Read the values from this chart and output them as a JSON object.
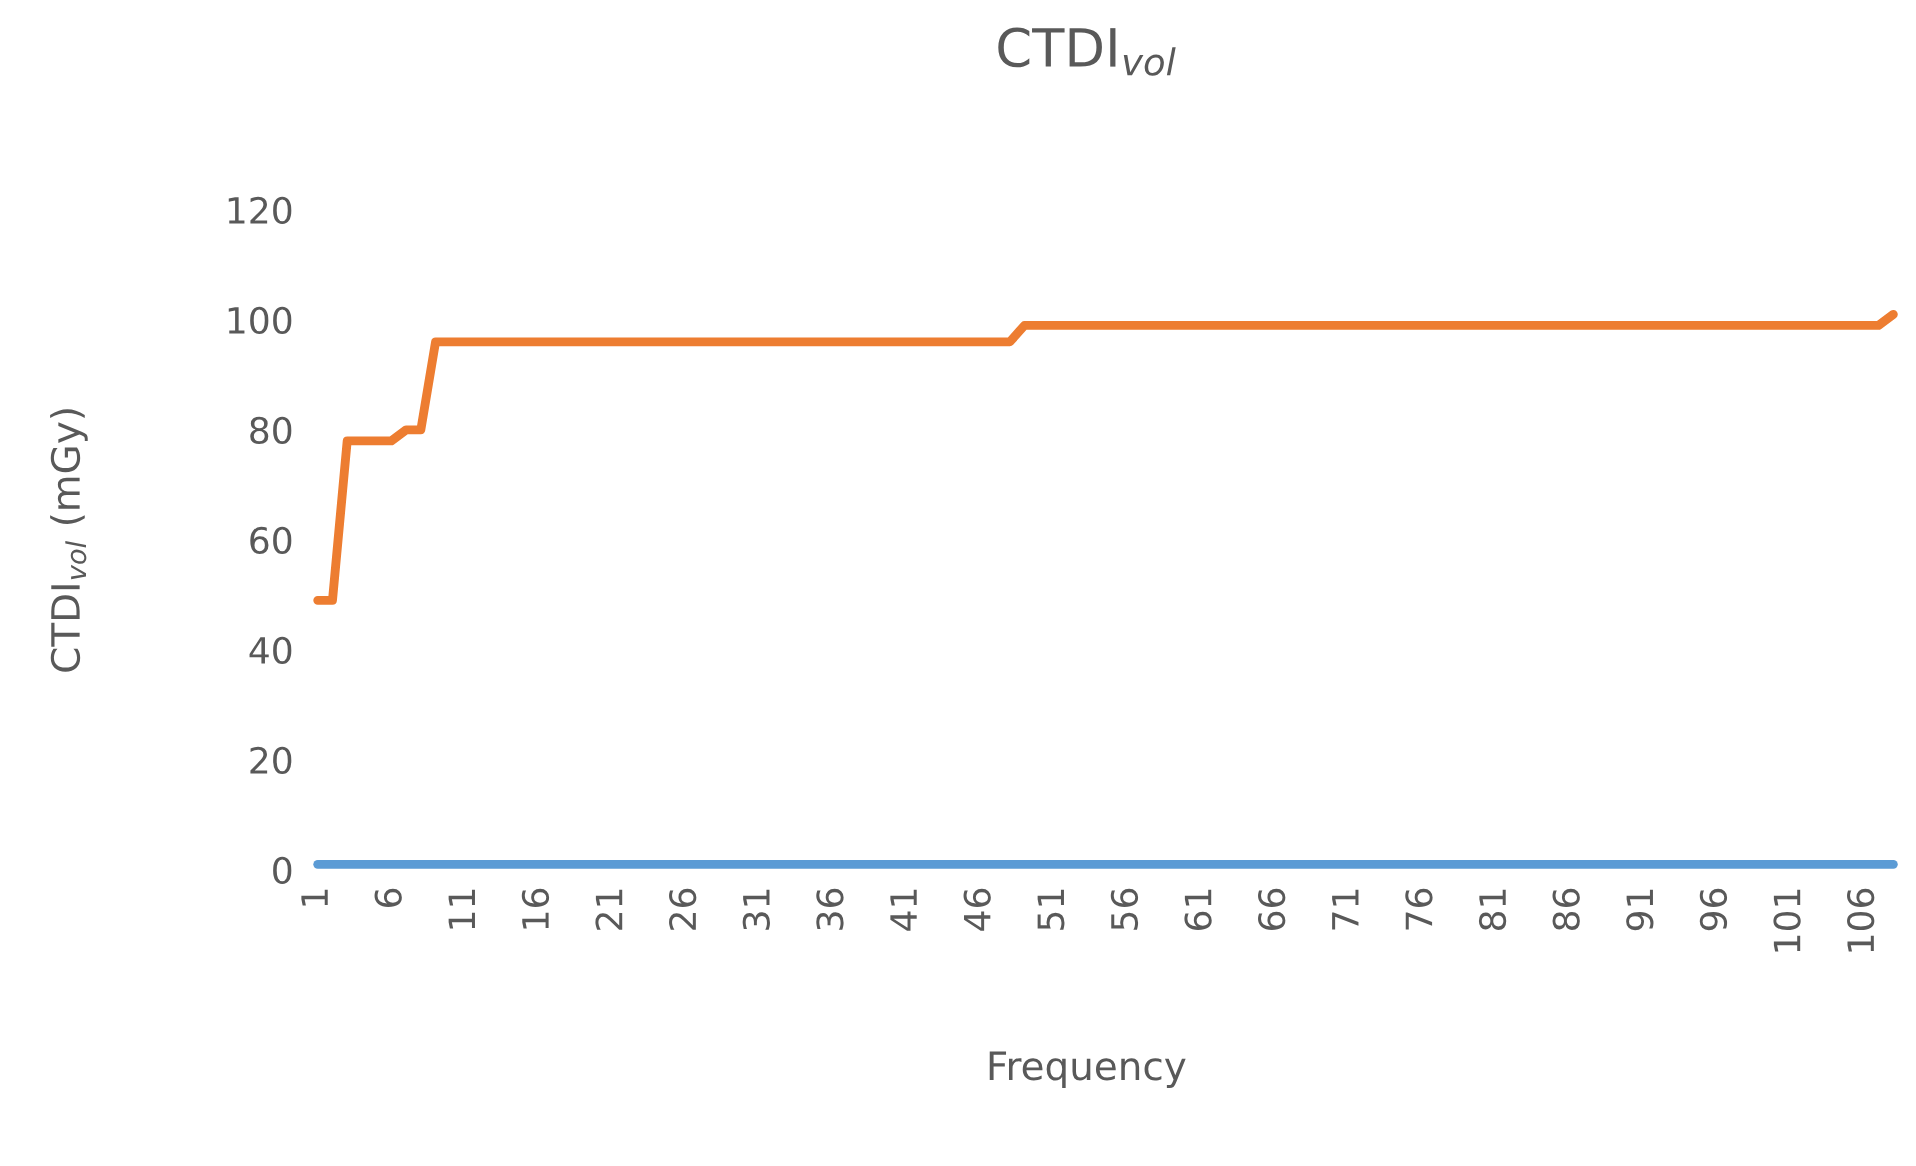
{
  "chart_data": {
    "type": "line",
    "title": "CTDI$_{vol}$",
    "xlabel": "Frequency",
    "ylabel": "CTDI$_{vol}$ (mGy)",
    "categories": [
      "1",
      null,
      null,
      null,
      null,
      "6",
      null,
      null,
      null,
      null,
      "11",
      null,
      null,
      null,
      null,
      "16",
      null,
      null,
      null,
      null,
      "21",
      null,
      null,
      null,
      null,
      "26",
      null,
      null,
      null,
      null,
      "31",
      null,
      null,
      null,
      null,
      "36",
      null,
      null,
      null,
      null,
      "41",
      null,
      null,
      null,
      null,
      "46",
      null,
      null,
      null,
      null,
      "51",
      null,
      null,
      null,
      null,
      "56",
      null,
      null,
      null,
      null,
      "61",
      null,
      null,
      null,
      null,
      "66",
      null,
      null,
      null,
      null,
      "71",
      null,
      null,
      null,
      null,
      "76",
      null,
      null,
      null,
      null,
      "81",
      null,
      null,
      null,
      null,
      "86",
      null,
      null,
      null,
      null,
      "91",
      null,
      null,
      null,
      null,
      "96",
      null,
      null,
      null,
      null,
      "101",
      null,
      null,
      null,
      null,
      "106",
      null,
      null
    ],
    "series": [
      {
        "color": "#5b9bd5",
        "values": [
          1,
          1,
          1,
          1,
          1,
          1,
          1,
          1,
          1,
          1,
          1,
          1,
          1,
          1,
          1,
          1,
          1,
          1,
          1,
          1,
          1,
          1,
          1,
          1,
          1,
          1,
          1,
          1,
          1,
          1,
          1,
          1,
          1,
          1,
          1,
          1,
          1,
          1,
          1,
          1,
          1,
          1,
          1,
          1,
          1,
          1,
          1,
          1,
          1,
          1,
          1,
          1,
          1,
          1,
          1,
          1,
          1,
          1,
          1,
          1,
          1,
          1,
          1,
          1,
          1,
          1,
          1,
          1,
          1,
          1,
          1,
          1,
          1,
          1,
          1,
          1,
          1,
          1,
          1,
          1,
          1,
          1,
          1,
          1,
          1,
          1,
          1,
          1,
          1,
          1,
          1,
          1,
          1,
          1,
          1,
          1,
          1,
          1,
          1,
          1,
          1,
          1,
          1,
          1,
          1,
          1,
          1,
          1
        ]
      },
      {
        "color": "#ed7d31",
        "values": [
          49,
          49,
          78,
          78,
          78,
          78,
          80,
          80,
          96,
          96,
          96,
          96,
          96,
          96,
          96,
          96,
          96,
          96,
          96,
          96,
          96,
          96,
          96,
          96,
          96,
          96,
          96,
          96,
          96,
          96,
          96,
          96,
          96,
          96,
          96,
          96,
          96,
          96,
          96,
          96,
          96,
          96,
          96,
          96,
          96,
          96,
          96,
          96,
          99,
          99,
          99,
          99,
          99,
          99,
          99,
          99,
          99,
          99,
          99,
          99,
          99,
          99,
          99,
          99,
          99,
          99,
          99,
          99,
          99,
          99,
          99,
          99,
          99,
          99,
          99,
          99,
          99,
          99,
          99,
          99,
          99,
          99,
          99,
          99,
          99,
          99,
          99,
          99,
          99,
          99,
          99,
          99,
          99,
          99,
          99,
          99,
          99,
          99,
          99,
          99,
          99,
          99,
          99,
          99,
          99,
          99,
          99,
          101
        ]
      }
    ],
    "ylim": [
      0,
      120
    ],
    "yticks": [
      0,
      20,
      40,
      60,
      80,
      100,
      120
    ],
    "grid": false,
    "legend": false,
    "marker": "none",
    "line_style": "solid"
  }
}
